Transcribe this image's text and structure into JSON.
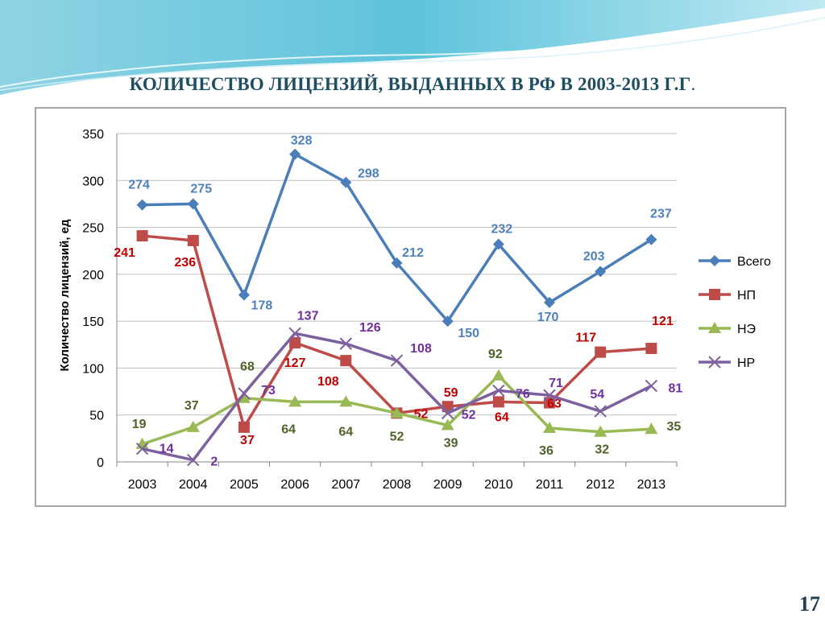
{
  "slide": {
    "title": "КОЛИЧЕСТВО ЛИЦЕНЗИЙ, ВЫДАННЫХ В РФ В 2003-2013 Г.Г",
    "title_tail": ".",
    "page_number": "17"
  },
  "chart_data": {
    "type": "line",
    "title": "",
    "xlabel": "",
    "ylabel": "Количество лицензий, ед",
    "categories": [
      "2003",
      "2004",
      "2005",
      "2006",
      "2007",
      "2008",
      "2009",
      "2010",
      "2011",
      "2012",
      "2013"
    ],
    "ylim": [
      0,
      350
    ],
    "yticks": [
      0,
      50,
      100,
      150,
      200,
      250,
      300,
      350
    ],
    "grid": true,
    "legend_position": "right",
    "series": [
      {
        "name": "Всего",
        "color": "#4a7ebb",
        "label_color": "#4f81bd",
        "marker": "diamond",
        "values": [
          274,
          275,
          178,
          328,
          298,
          212,
          150,
          232,
          170,
          203,
          237
        ]
      },
      {
        "name": "НП",
        "color": "#be4b48",
        "label_color": "#c00000",
        "marker": "square",
        "values": [
          241,
          236,
          37,
          127,
          108,
          52,
          59,
          64,
          63,
          117,
          121
        ]
      },
      {
        "name": "НЭ",
        "color": "#98b954",
        "label_color": "#4f6228",
        "marker": "triangle",
        "values": [
          19,
          37,
          68,
          64,
          64,
          52,
          39,
          92,
          36,
          32,
          35
        ]
      },
      {
        "name": "НР",
        "color": "#7d60a0",
        "label_color": "#7030a0",
        "marker": "x",
        "values": [
          14,
          2,
          73,
          137,
          126,
          108,
          52,
          76,
          71,
          54,
          81
        ]
      }
    ]
  }
}
